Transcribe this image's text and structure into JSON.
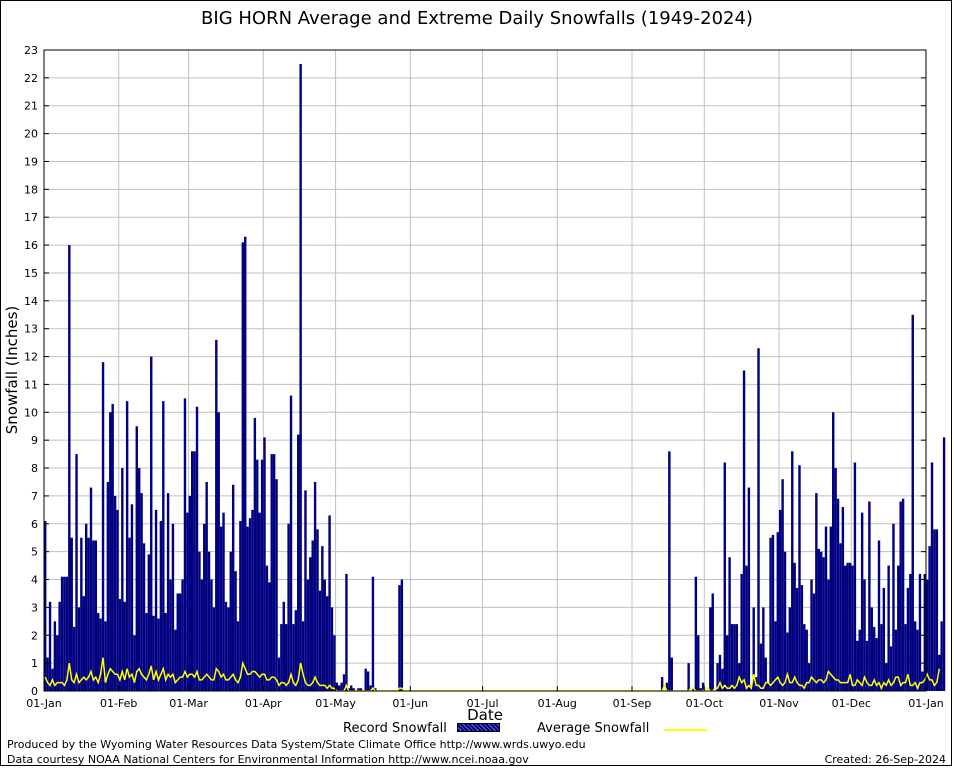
{
  "chart_data": {
    "type": "bar",
    "title": "BIG HORN Average and Extreme Daily Snowfalls (1949-2024)",
    "xlabel": "Date",
    "ylabel": "Snowfall (Inches)",
    "ylim": [
      0,
      23
    ],
    "yticks": [
      0,
      1,
      2,
      3,
      4,
      5,
      6,
      7,
      8,
      9,
      10,
      11,
      12,
      13,
      14,
      15,
      16,
      17,
      18,
      19,
      20,
      21,
      22,
      23
    ],
    "xlim_days": [
      0,
      366
    ],
    "xticks": [
      {
        "day": 0,
        "label": "01-Jan"
      },
      {
        "day": 31,
        "label": "01-Feb"
      },
      {
        "day": 60,
        "label": "01-Mar"
      },
      {
        "day": 91,
        "label": "01-Apr"
      },
      {
        "day": 121,
        "label": "01-May"
      },
      {
        "day": 152,
        "label": "01-Jun"
      },
      {
        "day": 182,
        "label": "01-Jul"
      },
      {
        "day": 213,
        "label": "01-Aug"
      },
      {
        "day": 244,
        "label": "01-Sep"
      },
      {
        "day": 274,
        "label": "01-Oct"
      },
      {
        "day": 305,
        "label": "01-Nov"
      },
      {
        "day": 335,
        "label": "01-Dec"
      },
      {
        "day": 366,
        "label": "01-Jan"
      }
    ],
    "grid": true,
    "legend_position": "bottom",
    "series": [
      {
        "name": "Record Snowfall",
        "type": "bar",
        "color": "#000080",
        "start_day": 0,
        "values": [
          6.1,
          1.2,
          3.2,
          0.8,
          2.5,
          2.0,
          3.2,
          4.1,
          4.1,
          4.1,
          16.0,
          5.5,
          2.3,
          8.5,
          3.0,
          5.5,
          3.4,
          6.0,
          5.5,
          7.3,
          5.4,
          5.4,
          2.8,
          2.6,
          11.8,
          2.5,
          7.5,
          10.0,
          10.3,
          7.0,
          6.5,
          3.3,
          8.0,
          3.2,
          10.4,
          5.5,
          6.7,
          2.0,
          9.5,
          8.0,
          7.1,
          5.3,
          2.8,
          4.9,
          12.0,
          2.7,
          6.5,
          2.6,
          6.1,
          10.4,
          2.8,
          7.1,
          4.0,
          6.0,
          2.2,
          3.5,
          3.5,
          4.0,
          10.5,
          6.4,
          7.0,
          8.6,
          8.6,
          10.2,
          5.0,
          4.0,
          6.0,
          7.5,
          5.0,
          4.0,
          3.0,
          12.6,
          10.0,
          5.9,
          6.4,
          3.2,
          3.0,
          5.0,
          7.4,
          4.3,
          2.5,
          6.1,
          16.1,
          16.3,
          5.9,
          6.2,
          6.5,
          9.8,
          8.3,
          6.4,
          8.3,
          9.1,
          4.5,
          3.9,
          8.5,
          8.5,
          7.6,
          1.2,
          2.4,
          3.2,
          2.4,
          6.0,
          10.6,
          2.4,
          2.9,
          9.2,
          22.5,
          2.5,
          7.2,
          4.0,
          4.8,
          5.4,
          7.5,
          5.8,
          3.6,
          5.2,
          4.0,
          3.4,
          6.3,
          3.0,
          2.0,
          0.3,
          0.2,
          0.3,
          0.6,
          4.2,
          0.1,
          0.2,
          0.1,
          0.0,
          0.1,
          0.1,
          0.0,
          0.8,
          0.7,
          0.2,
          4.1,
          0.1,
          0.0,
          0.0,
          0.0,
          0.0,
          0.0,
          0.0,
          0.0,
          0.0,
          0.0,
          3.8,
          4.0,
          0.0,
          0.0,
          0.0,
          0.0,
          0.0,
          0.0,
          0.0,
          0.0,
          0.0,
          0.0,
          0.0,
          0.0,
          0.0,
          0.0,
          0.0,
          0.0,
          0.0,
          0.0,
          0.0,
          0.0,
          0.0,
          0.0,
          0.0,
          0.0,
          0.0,
          0.0,
          0.0,
          0.0,
          0.0,
          0.0,
          0.0,
          0.0,
          0.0,
          0.0,
          0.0,
          0.0,
          0.0,
          0.0,
          0.0,
          0.0,
          0.0,
          0.0,
          0.0,
          0.0,
          0.0,
          0.0,
          0.0,
          0.0,
          0.0,
          0.0,
          0.0,
          0.0,
          0.0,
          0.0,
          0.0,
          0.0,
          0.0,
          0.0,
          0.0,
          0.0,
          0.0,
          0.0,
          0.0,
          0.0,
          0.0,
          0.0,
          0.0,
          0.0,
          0.0,
          0.0,
          0.0,
          0.0,
          0.0,
          0.0,
          0.0,
          0.0,
          0.0,
          0.0,
          0.0,
          0.0,
          0.0,
          0.0,
          0.0,
          0.0,
          0.0,
          0.0,
          0.0,
          0.0,
          0.0,
          0.0,
          0.0,
          0.0,
          0.0,
          0.0,
          0.0,
          0.0,
          0.0,
          0.0,
          0.0,
          0.0,
          0.0,
          0.0,
          0.0,
          0.0,
          0.0,
          0.0,
          0.0,
          0.5,
          0.0,
          0.3,
          8.6,
          1.2,
          0.0,
          0.0,
          0.0,
          0.0,
          0.0,
          0.0,
          1.0,
          0.0,
          0.1,
          4.1,
          2.0,
          0.1,
          0.3,
          0.0,
          0.0,
          3.0,
          3.5,
          0.0,
          1.0,
          1.3,
          0.8,
          8.2,
          2.0,
          4.8,
          2.4,
          2.4,
          2.4,
          1.0,
          4.2,
          11.5,
          4.5,
          7.3,
          0.2,
          3.0,
          0.5,
          12.3,
          1.7,
          3.0,
          1.2,
          0.3,
          5.5,
          5.6,
          2.5,
          5.7,
          6.5,
          7.6,
          5.0,
          2.1,
          3.0,
          8.6,
          4.6,
          3.7,
          8.1,
          3.8,
          2.4,
          2.2,
          1.0,
          4.0,
          3.5,
          7.1,
          5.1,
          5.0,
          4.8,
          5.9,
          4.0,
          5.9,
          10.0,
          8.0,
          6.9,
          5.3,
          6.6,
          4.5,
          4.6,
          4.6,
          4.5,
          8.2,
          1.8,
          2.2,
          6.4,
          4.0,
          1.8,
          6.8,
          3.0,
          2.3,
          1.9,
          5.4,
          2.4,
          3.7,
          1.0,
          4.5,
          1.6,
          6.0,
          2.2,
          4.5,
          6.8,
          6.9,
          2.4,
          3.7,
          4.2,
          13.5,
          2.5,
          2.2,
          4.2,
          0.7,
          4.2,
          4.0,
          5.2,
          8.2,
          5.8,
          5.8,
          1.3,
          2.5,
          9.1
        ]
      },
      {
        "name": "Average Snowfall",
        "type": "line",
        "color": "#ffff00",
        "start_day": 0,
        "values": [
          0.5,
          0.3,
          0.2,
          0.4,
          0.2,
          0.3,
          0.3,
          0.3,
          0.2,
          0.4,
          1.0,
          0.4,
          0.3,
          0.6,
          0.3,
          0.4,
          0.5,
          0.4,
          0.5,
          0.7,
          0.4,
          0.5,
          0.3,
          0.6,
          1.2,
          0.3,
          0.6,
          0.8,
          0.7,
          0.6,
          0.6,
          0.4,
          0.7,
          0.4,
          0.8,
          0.5,
          0.6,
          0.3,
          0.7,
          0.8,
          0.6,
          0.5,
          0.4,
          0.6,
          0.9,
          0.4,
          0.7,
          0.4,
          0.6,
          0.8,
          0.4,
          0.6,
          0.5,
          0.6,
          0.3,
          0.4,
          0.5,
          0.5,
          0.7,
          0.5,
          0.6,
          0.6,
          0.5,
          0.7,
          0.4,
          0.4,
          0.5,
          0.6,
          0.5,
          0.4,
          0.4,
          0.8,
          0.7,
          0.5,
          0.6,
          0.4,
          0.4,
          0.5,
          0.6,
          0.4,
          0.3,
          0.5,
          1.0,
          0.8,
          0.6,
          0.6,
          0.7,
          0.7,
          0.6,
          0.5,
          0.6,
          0.6,
          0.4,
          0.4,
          0.5,
          0.5,
          0.4,
          0.2,
          0.3,
          0.3,
          0.2,
          0.3,
          0.6,
          0.3,
          0.2,
          0.4,
          1.0,
          0.6,
          0.3,
          0.2,
          0.2,
          0.3,
          0.5,
          0.3,
          0.2,
          0.2,
          0.2,
          0.1,
          0.2,
          0.1,
          0.1,
          0.0,
          0.0,
          0.0,
          0.0,
          0.2,
          0.0,
          0.0,
          0.0,
          0.0,
          0.0,
          0.0,
          0.0,
          0.0,
          0.0,
          0.0,
          0.1,
          0.0,
          0.0,
          0.0,
          0.0,
          0.0,
          0.0,
          0.0,
          0.0,
          0.0,
          0.0,
          0.1,
          0.1,
          0.0,
          0.0,
          0.0,
          0.0,
          0.0,
          0.0,
          0.0,
          0.0,
          0.0,
          0.0,
          0.0,
          0.0,
          0.0,
          0.0,
          0.0,
          0.0,
          0.0,
          0.0,
          0.0,
          0.0,
          0.0,
          0.0,
          0.0,
          0.0,
          0.0,
          0.0,
          0.0,
          0.0,
          0.0,
          0.0,
          0.0,
          0.0,
          0.0,
          0.0,
          0.0,
          0.0,
          0.0,
          0.0,
          0.0,
          0.0,
          0.0,
          0.0,
          0.0,
          0.0,
          0.0,
          0.0,
          0.0,
          0.0,
          0.0,
          0.0,
          0.0,
          0.0,
          0.0,
          0.0,
          0.0,
          0.0,
          0.0,
          0.0,
          0.0,
          0.0,
          0.0,
          0.0,
          0.0,
          0.0,
          0.0,
          0.0,
          0.0,
          0.0,
          0.0,
          0.0,
          0.0,
          0.0,
          0.0,
          0.0,
          0.0,
          0.0,
          0.0,
          0.0,
          0.0,
          0.0,
          0.0,
          0.0,
          0.0,
          0.0,
          0.0,
          0.0,
          0.0,
          0.0,
          0.0,
          0.0,
          0.0,
          0.0,
          0.0,
          0.0,
          0.0,
          0.0,
          0.0,
          0.0,
          0.0,
          0.0,
          0.0,
          0.0,
          0.0,
          0.0,
          0.0,
          0.0,
          0.0,
          0.0,
          0.2,
          0.0,
          0.0,
          0.0,
          0.0,
          0.0,
          0.0,
          0.0,
          0.0,
          0.0,
          0.0,
          0.1,
          0.1,
          0.0,
          0.0,
          0.0,
          0.0,
          0.1,
          0.1,
          0.0,
          0.0,
          0.1,
          0.1,
          0.3,
          0.1,
          0.2,
          0.1,
          0.1,
          0.2,
          0.1,
          0.2,
          0.5,
          0.3,
          0.4,
          0.1,
          0.2,
          0.1,
          0.6,
          0.2,
          0.2,
          0.1,
          0.1,
          0.3,
          0.3,
          0.2,
          0.3,
          0.4,
          0.5,
          0.3,
          0.2,
          0.3,
          0.6,
          0.3,
          0.3,
          0.5,
          0.3,
          0.2,
          0.2,
          0.1,
          0.3,
          0.3,
          0.5,
          0.4,
          0.3,
          0.4,
          0.4,
          0.3,
          0.4,
          0.7,
          0.6,
          0.5,
          0.4,
          0.4,
          0.3,
          0.3,
          0.3,
          0.3,
          0.6,
          0.2,
          0.2,
          0.4,
          0.3,
          0.2,
          0.5,
          0.3,
          0.2,
          0.2,
          0.4,
          0.2,
          0.3,
          0.1,
          0.3,
          0.2,
          0.4,
          0.2,
          0.3,
          0.5,
          0.5,
          0.2,
          0.3,
          0.3,
          0.6,
          0.2,
          0.2,
          0.3,
          0.1,
          0.3,
          0.3,
          0.4,
          0.6,
          0.4,
          0.4,
          0.2,
          0.3,
          0.8
        ]
      }
    ]
  },
  "footer": {
    "credit_line1": "Produced by the Wyoming Water Resources Data System/State Climate Office http://www.wrds.uwyo.edu",
    "credit_line2": "Data courtesy NOAA National Centers for Environmental Information http://www.ncei.noaa.gov",
    "created": "Created:  26-Sep-2024"
  }
}
